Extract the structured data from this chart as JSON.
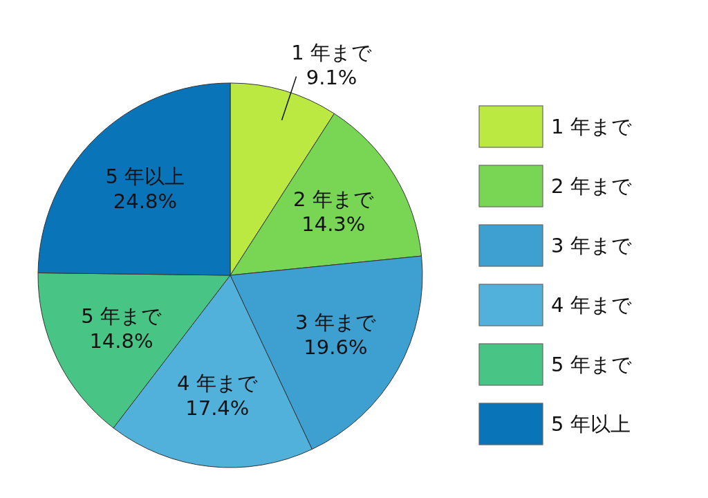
{
  "chart_data": {
    "type": "pie",
    "categories": [
      "1 年まで",
      "2 年まで",
      "3 年まで",
      "4 年まで",
      "5 年まで",
      "5 年以上"
    ],
    "values": [
      9.1,
      14.3,
      19.6,
      17.4,
      14.8,
      24.8
    ],
    "colors": [
      "#bbe942",
      "#78d654",
      "#3e9fd1",
      "#52b1da",
      "#48c585",
      "#0a74b8"
    ],
    "value_labels": [
      "9.1%",
      "14.3%",
      "19.6%",
      "17.4%",
      "14.8%",
      "24.8%"
    ],
    "legend": "right"
  }
}
